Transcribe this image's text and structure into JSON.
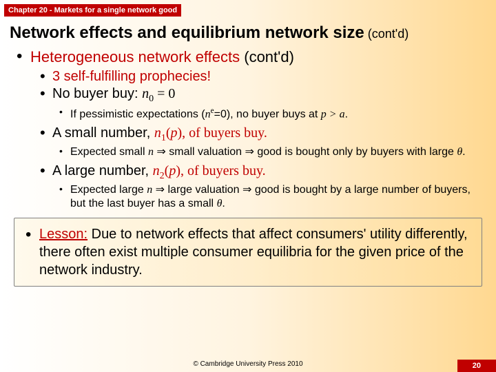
{
  "chapter_bar": "Chapter 20 - Markets for a single network good",
  "title_main": "Network effects and equilibrium network size",
  "title_contd": " (cont'd)",
  "h1_main": "Heterogeneous network effects",
  "h1_contd": " (cont'd)",
  "p3": "3 self-fulfilling prophecies!",
  "nobuyer_a": "No buyer buy: ",
  "nobuyer_b": "n",
  "nobuyer_c": "0",
  "nobuyer_d": " = 0",
  "pess_a": "If pessimistic expectations (",
  "pess_b": "n",
  "pess_c": "e",
  "pess_d": "=0), no buyer buys at ",
  "pess_e": "p > a",
  "pess_f": ".",
  "small_a": "A small number, ",
  "small_b": "n",
  "small_c": "1",
  "small_d": "(",
  "small_e": "p",
  "small_f": "), of buyers buy.",
  "smallexp_a": "Expected small ",
  "smallexp_b": "n",
  "smallexp_c": " ⇒ small valuation ⇒ good is bought only by buyers with large ",
  "smallexp_d": "θ",
  "smallexp_e": ".",
  "large_a": "A large number, ",
  "large_b": "n",
  "large_c": "2",
  "large_d": "(",
  "large_e": "p",
  "large_f": "), of buyers buy.",
  "largeexp_a": "Expected large ",
  "largeexp_b": "n",
  "largeexp_c": " ⇒ large valuation ⇒ good is bought by a large number of buyers, but the last buyer has a small ",
  "largeexp_d": "θ",
  "largeexp_e": ".",
  "lesson_label": "Lesson:",
  "lesson_text": " Due to network effects that affect consumers' utility differently, there often exist multiple consumer equilibria for the given price of the network industry.",
  "copyright": "© Cambridge University Press 2010",
  "pagenum": "20",
  "colors": {
    "accent": "#c00000",
    "bg_light": "#ffffff",
    "bg_dark": "#ffd890",
    "text": "#000000"
  }
}
